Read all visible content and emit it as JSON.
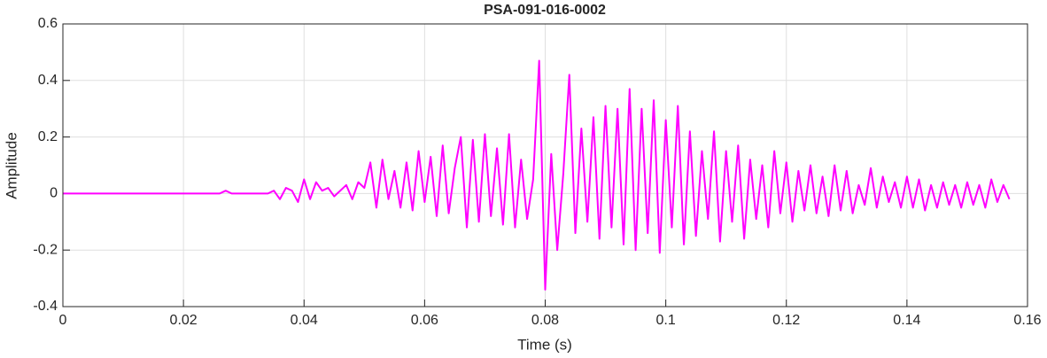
{
  "chart_data": {
    "type": "line",
    "title": "PSA-091-016-0002",
    "x_label": "Time (s)",
    "y_label": "Amplitude",
    "xlim": [
      0,
      0.16
    ],
    "xticks": [
      0,
      0.02,
      0.04,
      0.06,
      0.08,
      0.1,
      0.12,
      0.14,
      0.16
    ],
    "ylim": [
      -0.4,
      0.6
    ],
    "yticks": [
      -0.4,
      -0.2,
      0,
      0.2,
      0.4,
      0.6
    ],
    "grid": true,
    "x": [
      0,
      0.001,
      0.002,
      0.003,
      0.004,
      0.005,
      0.006,
      0.007,
      0.008,
      0.009,
      0.01,
      0.011,
      0.012,
      0.013,
      0.014,
      0.015,
      0.016,
      0.017,
      0.018,
      0.019,
      0.02,
      0.021,
      0.022,
      0.023,
      0.024,
      0.025,
      0.026,
      0.027,
      0.028,
      0.029,
      0.03,
      0.031,
      0.032,
      0.033,
      0.034,
      0.035,
      0.036,
      0.037,
      0.038,
      0.039,
      0.04,
      0.041,
      0.042,
      0.043,
      0.044,
      0.045,
      0.046,
      0.047,
      0.048,
      0.049,
      0.05,
      0.051,
      0.052,
      0.053,
      0.054,
      0.055,
      0.056,
      0.057,
      0.058,
      0.059,
      0.06,
      0.061,
      0.062,
      0.063,
      0.064,
      0.065,
      0.066,
      0.067,
      0.068,
      0.069,
      0.07,
      0.071,
      0.072,
      0.073,
      0.074,
      0.075,
      0.076,
      0.077,
      0.078,
      0.079,
      0.08,
      0.081,
      0.082,
      0.083,
      0.084,
      0.085,
      0.086,
      0.087,
      0.088,
      0.089,
      0.09,
      0.091,
      0.092,
      0.093,
      0.094,
      0.095,
      0.096,
      0.097,
      0.098,
      0.099,
      0.1,
      0.101,
      0.102,
      0.103,
      0.104,
      0.105,
      0.106,
      0.107,
      0.108,
      0.109,
      0.11,
      0.111,
      0.112,
      0.113,
      0.114,
      0.115,
      0.116,
      0.117,
      0.118,
      0.119,
      0.12,
      0.121,
      0.122,
      0.123,
      0.124,
      0.125,
      0.126,
      0.127,
      0.128,
      0.129,
      0.13,
      0.131,
      0.132,
      0.133,
      0.134,
      0.135,
      0.136,
      0.137,
      0.138,
      0.139,
      0.14,
      0.141,
      0.142,
      0.143,
      0.144,
      0.145,
      0.146,
      0.147,
      0.148,
      0.149,
      0.15,
      0.151,
      0.152,
      0.153,
      0.154,
      0.155,
      0.156,
      0.157
    ],
    "series": [
      {
        "color": "#ff00ff",
        "values": [
          0,
          0,
          0,
          0,
          0,
          0,
          0,
          0,
          0,
          0,
          0,
          0,
          0,
          0,
          0,
          0,
          0,
          0,
          0,
          0,
          0,
          0,
          0,
          0,
          0,
          0,
          0,
          0.01,
          0,
          0,
          0,
          0,
          0,
          0,
          0,
          0.01,
          -0.02,
          0.02,
          0.01,
          -0.03,
          0.05,
          -0.02,
          0.04,
          0.01,
          0.02,
          -0.01,
          0.01,
          0.03,
          -0.02,
          0.04,
          0.02,
          0.11,
          -0.05,
          0.12,
          -0.02,
          0.08,
          -0.05,
          0.11,
          -0.06,
          0.15,
          -0.03,
          0.13,
          -0.08,
          0.17,
          -0.07,
          0.09,
          0.2,
          -0.12,
          0.19,
          -0.1,
          0.21,
          -0.08,
          0.16,
          -0.11,
          0.21,
          -0.12,
          0.12,
          -0.09,
          0.05,
          0.47,
          -0.34,
          0.14,
          -0.2,
          0.07,
          0.42,
          -0.14,
          0.23,
          -0.1,
          0.27,
          -0.16,
          0.31,
          -0.12,
          0.3,
          -0.18,
          0.37,
          -0.2,
          0.3,
          -0.14,
          0.33,
          -0.21,
          0.26,
          -0.12,
          0.31,
          -0.18,
          0.22,
          -0.15,
          0.15,
          -0.09,
          0.22,
          -0.17,
          0.15,
          -0.1,
          0.17,
          -0.16,
          0.12,
          -0.09,
          0.1,
          -0.12,
          0.15,
          -0.07,
          0.11,
          -0.1,
          0.08,
          -0.06,
          0.1,
          -0.07,
          0.06,
          -0.08,
          0.1,
          -0.06,
          0.08,
          -0.07,
          0.03,
          -0.04,
          0.09,
          -0.05,
          0.06,
          -0.03,
          0.04,
          -0.05,
          0.06,
          -0.05,
          0.05,
          -0.06,
          0.03,
          -0.05,
          0.04,
          -0.04,
          0.03,
          -0.05,
          0.04,
          -0.04,
          0.03,
          -0.05,
          0.05,
          -0.03,
          0.03,
          -0.02
        ]
      }
    ]
  }
}
